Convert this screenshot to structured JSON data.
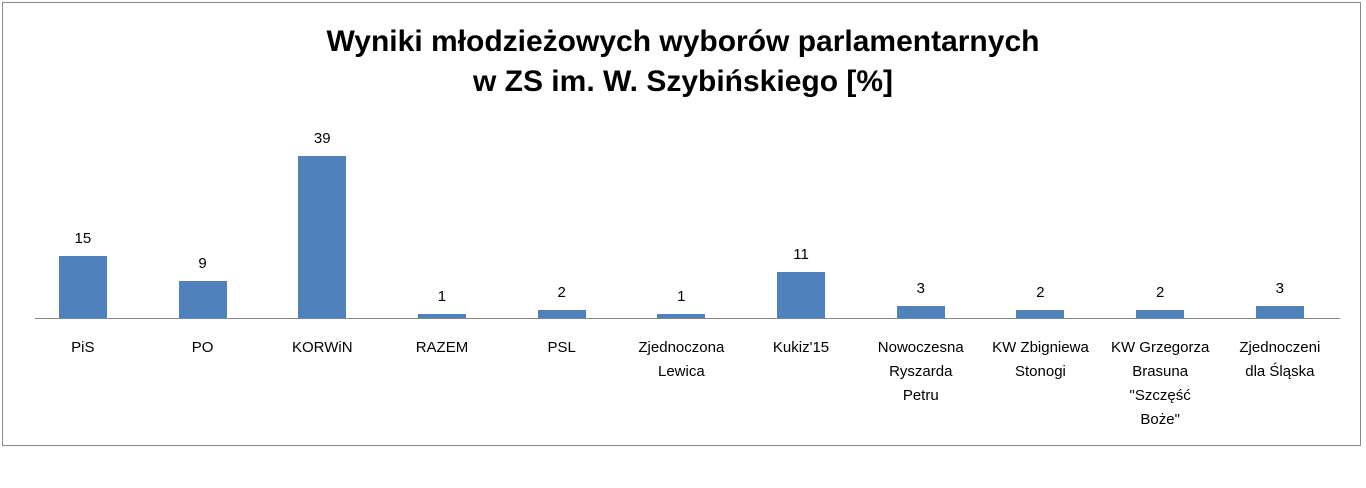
{
  "chart_data": {
    "type": "bar",
    "title": "Wyniki młodzieżowych wyborów parlamentarnych\nw ZS im. W. Szybińskiego [%]",
    "categories": [
      "PiS",
      "PO",
      "KORWiN",
      "RAZEM",
      "PSL",
      "Zjednoczona\nLewica",
      "Kukiz'15",
      "Nowoczesna\nRyszarda\nPetru",
      "KW Zbigniewa\nStonogi",
      "KW Grzegorza\nBrasuna\n\"Szczęść\nBoże\"",
      "Zjednoczeni\ndla Śląska"
    ],
    "values": [
      15,
      9,
      39,
      1,
      2,
      1,
      11,
      3,
      2,
      2,
      3
    ],
    "color": "#4f81bd",
    "ylim": [
      0,
      40
    ]
  }
}
